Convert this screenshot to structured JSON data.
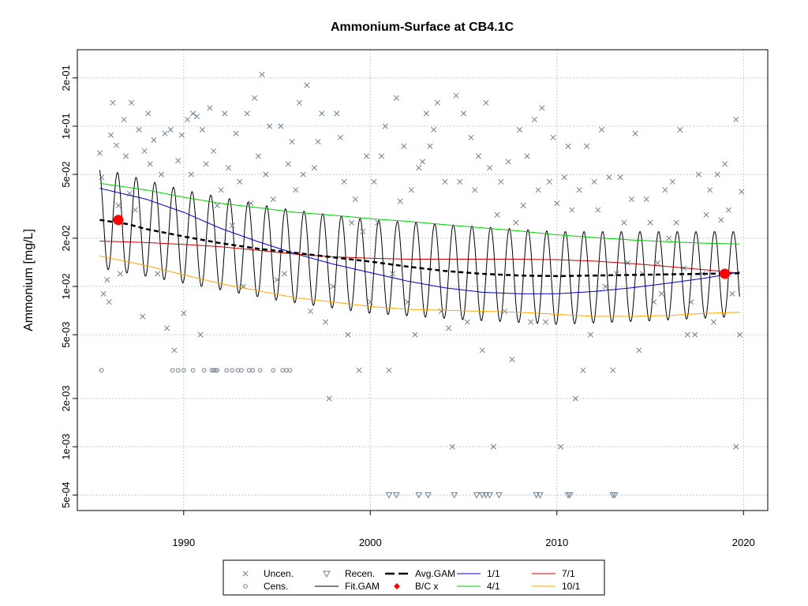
{
  "chart_data": {
    "type": "scatter",
    "title": "Ammonium-Surface at CB4.1C",
    "xlabel": "",
    "ylabel": "Ammonium [mg/L]",
    "xlim": [
      1984.3,
      2021.3
    ],
    "ylim": [
      0.0004,
      0.3
    ],
    "log_y": true,
    "grid": true,
    "x_ticks": [
      1990,
      2000,
      2010,
      2020
    ],
    "x_tick_labels": [
      "1990",
      "2000",
      "2010",
      "2020"
    ],
    "y_ticks": [
      0.0005,
      0.001,
      0.002,
      0.005,
      0.01,
      0.02,
      0.05,
      0.1,
      0.2
    ],
    "y_tick_labels": [
      "5e-04",
      "1e-03",
      "2e-03",
      "5e-03",
      "1e-02",
      "2e-02",
      "5e-02",
      "1e-01",
      "2e-01"
    ],
    "legend_position": "bottom",
    "legend": [
      {
        "label": "Uncen.",
        "symbol": "x",
        "color": "#708090"
      },
      {
        "label": "Cens.",
        "symbol": "circle",
        "color": "#708090"
      },
      {
        "label": "Recen.",
        "symbol": "triangle-down",
        "color": "#708090"
      },
      {
        "label": "Fit.GAM",
        "symbol": "line",
        "color": "#000000"
      },
      {
        "label": "Avg.GAM",
        "symbol": "dashed-line",
        "color": "#000000"
      },
      {
        "label": "B/C x",
        "symbol": "diamond",
        "color": "#ff0000"
      },
      {
        "label": "1/1",
        "symbol": "line",
        "color": "#0000cd"
      },
      {
        "label": "4/1",
        "symbol": "line",
        "color": "#00cc00"
      },
      {
        "label": "7/1",
        "symbol": "line",
        "color": "#cc0000"
      },
      {
        "label": "10/1",
        "symbol": "line",
        "color": "#ffa500"
      }
    ],
    "series": [
      {
        "name": "1/1",
        "color": "#0000cd",
        "points": [
          [
            1985.5,
            0.041
          ],
          [
            1988,
            0.035
          ],
          [
            1990,
            0.029
          ],
          [
            1992,
            0.023
          ],
          [
            1994,
            0.019
          ],
          [
            1996,
            0.016
          ],
          [
            1998,
            0.0138
          ],
          [
            2000,
            0.0122
          ],
          [
            2002,
            0.0108
          ],
          [
            2004,
            0.0098
          ],
          [
            2006,
            0.0092
          ],
          [
            2008,
            0.009
          ],
          [
            2010,
            0.009
          ],
          [
            2012,
            0.0093
          ],
          [
            2014,
            0.0098
          ],
          [
            2016,
            0.0105
          ],
          [
            2018,
            0.0113
          ],
          [
            2019.8,
            0.0123
          ]
        ]
      },
      {
        "name": "4/1",
        "color": "#00cc00",
        "points": [
          [
            1985.5,
            0.044
          ],
          [
            1988,
            0.04
          ],
          [
            1990,
            0.036
          ],
          [
            1992,
            0.033
          ],
          [
            1994,
            0.031
          ],
          [
            1996,
            0.029
          ],
          [
            1998,
            0.0278
          ],
          [
            2000,
            0.0265
          ],
          [
            2002,
            0.0255
          ],
          [
            2004,
            0.0243
          ],
          [
            2006,
            0.0232
          ],
          [
            2008,
            0.0222
          ],
          [
            2010,
            0.021
          ],
          [
            2012,
            0.0202
          ],
          [
            2014,
            0.0195
          ],
          [
            2016,
            0.019
          ],
          [
            2018,
            0.0186
          ],
          [
            2019.8,
            0.0184
          ]
        ]
      },
      {
        "name": "7/1",
        "color": "#cc0000",
        "points": [
          [
            1985.5,
            0.0192
          ],
          [
            1988,
            0.0188
          ],
          [
            1990,
            0.0183
          ],
          [
            1992,
            0.0177
          ],
          [
            1994,
            0.0168
          ],
          [
            1996,
            0.0159
          ],
          [
            1998,
            0.0153
          ],
          [
            2000,
            0.015
          ],
          [
            2002,
            0.0148
          ],
          [
            2004,
            0.0148
          ],
          [
            2006,
            0.0148
          ],
          [
            2008,
            0.0148
          ],
          [
            2010,
            0.0147
          ],
          [
            2012,
            0.0144
          ],
          [
            2014,
            0.0139
          ],
          [
            2016,
            0.0133
          ],
          [
            2018,
            0.0127
          ],
          [
            2019.8,
            0.0121
          ]
        ]
      },
      {
        "name": "10/1",
        "color": "#ffa500",
        "points": [
          [
            1985.5,
            0.0155
          ],
          [
            1988,
            0.0135
          ],
          [
            1990,
            0.0118
          ],
          [
            1992,
            0.0104
          ],
          [
            1994,
            0.0094
          ],
          [
            1996,
            0.0085
          ],
          [
            1998,
            0.008
          ],
          [
            2000,
            0.0075
          ],
          [
            2002,
            0.0072
          ],
          [
            2004,
            0.0071
          ],
          [
            2006,
            0.007
          ],
          [
            2008,
            0.0069
          ],
          [
            2010,
            0.0067
          ],
          [
            2012,
            0.0065
          ],
          [
            2014,
            0.0065
          ],
          [
            2016,
            0.0066
          ],
          [
            2018,
            0.0068
          ],
          [
            2019.8,
            0.0069
          ]
        ]
      },
      {
        "name": "Avg.GAM",
        "color": "#000000",
        "points": [
          [
            1985.5,
            0.026
          ],
          [
            1987,
            0.0245
          ],
          [
            1988,
            0.0228
          ],
          [
            1990,
            0.0205
          ],
          [
            1992,
            0.0186
          ],
          [
            1994,
            0.0172
          ],
          [
            1996,
            0.0162
          ],
          [
            1998,
            0.0152
          ],
          [
            2000,
            0.0143
          ],
          [
            2002,
            0.0133
          ],
          [
            2004,
            0.0125
          ],
          [
            2006,
            0.012
          ],
          [
            2008,
            0.0117
          ],
          [
            2010,
            0.0116
          ],
          [
            2012,
            0.0117
          ],
          [
            2014,
            0.0118
          ],
          [
            2016,
            0.0119
          ],
          [
            2018,
            0.012
          ],
          [
            2019.8,
            0.0121
          ]
        ]
      },
      {
        "name": "B/C x",
        "color": "#ff0000",
        "points": [
          [
            1986.5,
            0.026
          ],
          [
            2019,
            0.012
          ]
        ]
      },
      {
        "name": "Fit.GAM",
        "color": "#000000",
        "seasonal_envelope": {
          "max": [
            [
              1985.5,
              0.055
            ],
            [
              1990,
              0.04
            ],
            [
              1995,
              0.031
            ],
            [
              2000,
              0.026
            ],
            [
              2005,
              0.024
            ],
            [
              2010,
              0.022
            ],
            [
              2015,
              0.022
            ],
            [
              2019.8,
              0.022
            ]
          ],
          "min": [
            [
              1985.5,
              0.013
            ],
            [
              1990,
              0.0105
            ],
            [
              1995,
              0.0082
            ],
            [
              2000,
              0.0068
            ],
            [
              2005,
              0.0062
            ],
            [
              2010,
              0.0058
            ],
            [
              2015,
              0.0061
            ],
            [
              2019.8,
              0.0065
            ]
          ]
        }
      }
    ],
    "uncensored_points": [
      [
        1985.5,
        0.068
      ],
      [
        1985.6,
        0.048
      ],
      [
        1985.7,
        0.009
      ],
      [
        1985.9,
        0.011
      ],
      [
        1986.0,
        0.008
      ],
      [
        1986.1,
        0.088
      ],
      [
        1986.2,
        0.14
      ],
      [
        1986.4,
        0.076
      ],
      [
        1986.5,
        0.032
      ],
      [
        1986.6,
        0.012
      ],
      [
        1986.8,
        0.11
      ],
      [
        1986.9,
        0.065
      ],
      [
        1987.1,
        0.038
      ],
      [
        1987.2,
        0.14
      ],
      [
        1987.4,
        0.03
      ],
      [
        1987.6,
        0.095
      ],
      [
        1987.8,
        0.0065
      ],
      [
        1987.9,
        0.07
      ],
      [
        1988.1,
        0.12
      ],
      [
        1988.2,
        0.058
      ],
      [
        1988.4,
        0.082
      ],
      [
        1988.6,
        0.012
      ],
      [
        1988.8,
        0.05
      ],
      [
        1989.0,
        0.09
      ],
      [
        1989.1,
        0.0055
      ],
      [
        1989.3,
        0.095
      ],
      [
        1989.5,
        0.004
      ],
      [
        1989.7,
        0.061
      ],
      [
        1989.9,
        0.088
      ],
      [
        1990.0,
        0.0068
      ],
      [
        1990.2,
        0.11
      ],
      [
        1990.4,
        0.05
      ],
      [
        1990.5,
        0.12
      ],
      [
        1990.7,
        0.115
      ],
      [
        1990.9,
        0.005
      ],
      [
        1991.0,
        0.095
      ],
      [
        1991.2,
        0.058
      ],
      [
        1991.4,
        0.13
      ],
      [
        1991.6,
        0.07
      ],
      [
        1991.8,
        0.032
      ],
      [
        1992.0,
        0.04
      ],
      [
        1992.2,
        0.12
      ],
      [
        1992.4,
        0.055
      ],
      [
        1992.6,
        0.024
      ],
      [
        1992.8,
        0.09
      ],
      [
        1993.0,
        0.045
      ],
      [
        1993.2,
        0.01
      ],
      [
        1993.4,
        0.12
      ],
      [
        1993.6,
        0.033
      ],
      [
        1993.8,
        0.15
      ],
      [
        1994.0,
        0.065
      ],
      [
        1994.2,
        0.21
      ],
      [
        1994.4,
        0.05
      ],
      [
        1994.6,
        0.1
      ],
      [
        1994.8,
        0.035
      ],
      [
        1995.0,
        0.011
      ],
      [
        1995.2,
        0.1
      ],
      [
        1995.4,
        0.012
      ],
      [
        1995.6,
        0.058
      ],
      [
        1995.8,
        0.08
      ],
      [
        1996.0,
        0.04
      ],
      [
        1996.2,
        0.14
      ],
      [
        1996.4,
        0.05
      ],
      [
        1996.6,
        0.18
      ],
      [
        1996.8,
        0.007
      ],
      [
        1997.0,
        0.055
      ],
      [
        1997.2,
        0.08
      ],
      [
        1997.4,
        0.12
      ],
      [
        1997.6,
        0.006
      ],
      [
        1997.8,
        0.002
      ],
      [
        1998.0,
        0.01
      ],
      [
        1998.2,
        0.12
      ],
      [
        1998.4,
        0.085
      ],
      [
        1998.6,
        0.045
      ],
      [
        1998.8,
        0.005
      ],
      [
        1999.0,
        0.025
      ],
      [
        1999.2,
        0.035
      ],
      [
        1999.4,
        0.003
      ],
      [
        1999.6,
        0.022
      ],
      [
        1999.8,
        0.065
      ],
      [
        2000.0,
        0.008
      ],
      [
        2000.2,
        0.045
      ],
      [
        2000.4,
        0.025
      ],
      [
        2000.6,
        0.065
      ],
      [
        2000.8,
        0.1
      ],
      [
        2001.0,
        0.003
      ],
      [
        2001.2,
        0.012
      ],
      [
        2001.4,
        0.15
      ],
      [
        2001.6,
        0.034
      ],
      [
        2001.8,
        0.075
      ],
      [
        2002.0,
        0.008
      ],
      [
        2002.2,
        0.04
      ],
      [
        2002.4,
        0.005
      ],
      [
        2002.6,
        0.055
      ],
      [
        2002.8,
        0.06
      ],
      [
        2003.0,
        0.12
      ],
      [
        2003.2,
        0.075
      ],
      [
        2003.4,
        0.095
      ],
      [
        2003.6,
        0.14
      ],
      [
        2003.8,
        0.007
      ],
      [
        2004.0,
        0.045
      ],
      [
        2004.2,
        0.0055
      ],
      [
        2004.4,
        0.001
      ],
      [
        2004.6,
        0.155
      ],
      [
        2004.8,
        0.045
      ],
      [
        2005.0,
        0.12
      ],
      [
        2005.2,
        0.006
      ],
      [
        2005.4,
        0.085
      ],
      [
        2005.6,
        0.04
      ],
      [
        2005.8,
        0.065
      ],
      [
        2006.0,
        0.004
      ],
      [
        2006.2,
        0.14
      ],
      [
        2006.4,
        0.055
      ],
      [
        2006.6,
        0.001
      ],
      [
        2006.8,
        0.028
      ],
      [
        2007.0,
        0.045
      ],
      [
        2007.2,
        0.007
      ],
      [
        2007.4,
        0.06
      ],
      [
        2007.6,
        0.0035
      ],
      [
        2007.8,
        0.025
      ],
      [
        2008.0,
        0.095
      ],
      [
        2008.2,
        0.032
      ],
      [
        2008.4,
        0.065
      ],
      [
        2008.6,
        0.006
      ],
      [
        2008.8,
        0.11
      ],
      [
        2009.0,
        0.04
      ],
      [
        2009.2,
        0.13
      ],
      [
        2009.4,
        0.006
      ],
      [
        2009.6,
        0.045
      ],
      [
        2009.8,
        0.085
      ],
      [
        2010.0,
        0.033
      ],
      [
        2010.2,
        0.001
      ],
      [
        2010.4,
        0.048
      ],
      [
        2010.6,
        0.075
      ],
      [
        2010.8,
        0.03
      ],
      [
        2011.0,
        0.002
      ],
      [
        2011.2,
        0.04
      ],
      [
        2011.4,
        0.003
      ],
      [
        2011.6,
        0.075
      ],
      [
        2011.8,
        0.005
      ],
      [
        2012.0,
        0.045
      ],
      [
        2012.2,
        0.03
      ],
      [
        2012.4,
        0.095
      ],
      [
        2012.6,
        0.01
      ],
      [
        2012.8,
        0.048
      ],
      [
        2013.0,
        0.003
      ],
      [
        2013.2,
        0.012
      ],
      [
        2013.4,
        0.048
      ],
      [
        2013.6,
        0.025
      ],
      [
        2013.8,
        0.014
      ],
      [
        2014.0,
        0.035
      ],
      [
        2014.2,
        0.09
      ],
      [
        2014.4,
        0.004
      ],
      [
        2014.6,
        0.012
      ],
      [
        2014.8,
        0.035
      ],
      [
        2015.0,
        0.025
      ],
      [
        2015.2,
        0.008
      ],
      [
        2015.4,
        0.014
      ],
      [
        2015.6,
        0.009
      ],
      [
        2015.8,
        0.04
      ],
      [
        2016.0,
        0.02
      ],
      [
        2016.2,
        0.045
      ],
      [
        2016.4,
        0.025
      ],
      [
        2016.6,
        0.095
      ],
      [
        2016.8,
        0.013
      ],
      [
        2017.0,
        0.005
      ],
      [
        2017.2,
        0.008
      ],
      [
        2017.4,
        0.005
      ],
      [
        2017.6,
        0.05
      ],
      [
        2017.8,
        0.012
      ],
      [
        2018.0,
        0.028
      ],
      [
        2018.2,
        0.04
      ],
      [
        2018.4,
        0.006
      ],
      [
        2018.6,
        0.05
      ],
      [
        2018.8,
        0.026
      ],
      [
        2019.0,
        0.058
      ],
      [
        2019.2,
        0.03
      ],
      [
        2019.4,
        0.009
      ],
      [
        2019.6,
        0.11
      ],
      [
        2019.8,
        0.005
      ],
      [
        2019.9,
        0.039
      ],
      [
        2019.6,
        0.001
      ]
    ],
    "censored_points": [
      [
        1985.6,
        0.003
      ],
      [
        1989.4,
        0.003
      ],
      [
        1989.7,
        0.003
      ],
      [
        1990.0,
        0.003
      ],
      [
        1990.5,
        0.003
      ],
      [
        1991.1,
        0.003
      ],
      [
        1991.5,
        0.003
      ],
      [
        1991.6,
        0.003
      ],
      [
        1991.7,
        0.003
      ],
      [
        1991.8,
        0.003
      ],
      [
        1992.3,
        0.003
      ],
      [
        1992.6,
        0.003
      ],
      [
        1992.9,
        0.003
      ],
      [
        1993.1,
        0.003
      ],
      [
        1993.5,
        0.003
      ],
      [
        1993.7,
        0.003
      ],
      [
        1994.1,
        0.003
      ],
      [
        1994.8,
        0.003
      ],
      [
        1995.3,
        0.003
      ],
      [
        1995.5,
        0.003
      ],
      [
        1995.7,
        0.003
      ]
    ],
    "recensored_points": [
      [
        2001.0,
        0.0005
      ],
      [
        2001.4,
        0.0005
      ],
      [
        2002.6,
        0.0005
      ],
      [
        2003.1,
        0.0005
      ],
      [
        2004.5,
        0.0005
      ],
      [
        2005.7,
        0.0005
      ],
      [
        2006.0,
        0.0005
      ],
      [
        2006.2,
        0.0005
      ],
      [
        2006.4,
        0.0005
      ],
      [
        2006.9,
        0.0005
      ],
      [
        2008.9,
        0.0005
      ],
      [
        2009.1,
        0.0005
      ],
      [
        2010.6,
        0.0005
      ],
      [
        2010.7,
        0.0005
      ],
      [
        2013.0,
        0.0005
      ],
      [
        2013.1,
        0.0005
      ]
    ]
  }
}
